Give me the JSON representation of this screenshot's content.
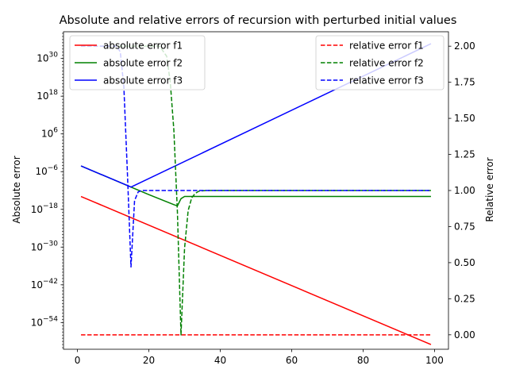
{
  "chart_data": {
    "type": "line",
    "title": "Absolute and relative errors of recursion with perturbed initial values",
    "xlabel": "",
    "ylabel_left": "Absolute error",
    "ylabel_right": "Relative error",
    "xlim": [
      -3.9,
      103.9
    ],
    "ylim_left_log10": [
      -62.5,
      38.5
    ],
    "ylim_right": [
      -0.1,
      2.1
    ],
    "x_ticks": [
      0,
      20,
      40,
      60,
      80,
      100
    ],
    "y_left_ticks": [
      {
        "exp": 30,
        "label": "10^30"
      },
      {
        "exp": 18,
        "label": "10^18"
      },
      {
        "exp": 6,
        "label": "10^6"
      },
      {
        "exp": -6,
        "label": "10^−6"
      },
      {
        "exp": -18,
        "label": "10^−18"
      },
      {
        "exp": -30,
        "label": "10^−30"
      },
      {
        "exp": -42,
        "label": "10^−42"
      },
      {
        "exp": -54,
        "label": "10^−54"
      }
    ],
    "y_right_ticks": [
      "0.00",
      "0.25",
      "0.50",
      "0.75",
      "1.00",
      "1.25",
      "1.50",
      "1.75",
      "2.00"
    ],
    "grid": false,
    "legends": [
      {
        "placement": "upper-left",
        "entries": [
          "absolute error f1",
          "absolute error f2",
          "absolute error f3"
        ]
      },
      {
        "placement": "upper-right",
        "entries": [
          "relative error f1",
          "relative error f2",
          "relative error f3"
        ]
      }
    ],
    "series": [
      {
        "name": "absolute error f1",
        "axis": "left-log10",
        "color": "#ff0000",
        "dash": false,
        "points": [
          [
            1,
            -13.9
          ],
          [
            99,
            -61.0
          ]
        ]
      },
      {
        "name": "absolute error f2",
        "axis": "left-log10",
        "color": "#008000",
        "dash": false,
        "points": [
          [
            1,
            -4.2
          ],
          [
            15,
            -10.9
          ],
          [
            20,
            -13.3
          ],
          [
            27,
            -16.5
          ],
          [
            28,
            -16.9
          ],
          [
            29,
            -14.6
          ],
          [
            30,
            -13.9
          ],
          [
            99,
            -13.9
          ]
        ]
      },
      {
        "name": "absolute error f3",
        "axis": "left-log10",
        "color": "#0000ff",
        "dash": false,
        "points": [
          [
            1,
            -4.2
          ],
          [
            14,
            -10.4
          ],
          [
            15,
            -10.9
          ],
          [
            99,
            34.7
          ]
        ]
      },
      {
        "name": "relative error f1",
        "axis": "right",
        "color": "#ff0000",
        "dash": true,
        "points": [
          [
            1,
            0.0
          ],
          [
            99,
            0.0
          ]
        ]
      },
      {
        "name": "relative error f2",
        "axis": "right",
        "color": "#008000",
        "dash": true,
        "points": [
          [
            1,
            2.0
          ],
          [
            20,
            2.0
          ],
          [
            23,
            2.0
          ],
          [
            25,
            1.93
          ],
          [
            26,
            1.75
          ],
          [
            27,
            1.42
          ],
          [
            28,
            0.85
          ],
          [
            29,
            0.0
          ],
          [
            30,
            0.6
          ],
          [
            31,
            0.86
          ],
          [
            32,
            0.95
          ],
          [
            33,
            0.98
          ],
          [
            34,
            0.995
          ],
          [
            36,
            1.0
          ],
          [
            99,
            1.0
          ]
        ]
      },
      {
        "name": "relative error f3",
        "axis": "right",
        "color": "#0000ff",
        "dash": true,
        "points": [
          [
            1,
            2.0
          ],
          [
            11,
            2.0
          ],
          [
            12,
            1.96
          ],
          [
            13,
            1.72
          ],
          [
            14,
            1.12
          ],
          [
            15,
            0.47
          ],
          [
            16,
            0.93
          ],
          [
            17,
            0.99
          ],
          [
            18,
            1.0
          ],
          [
            99,
            1.0
          ]
        ]
      }
    ]
  }
}
